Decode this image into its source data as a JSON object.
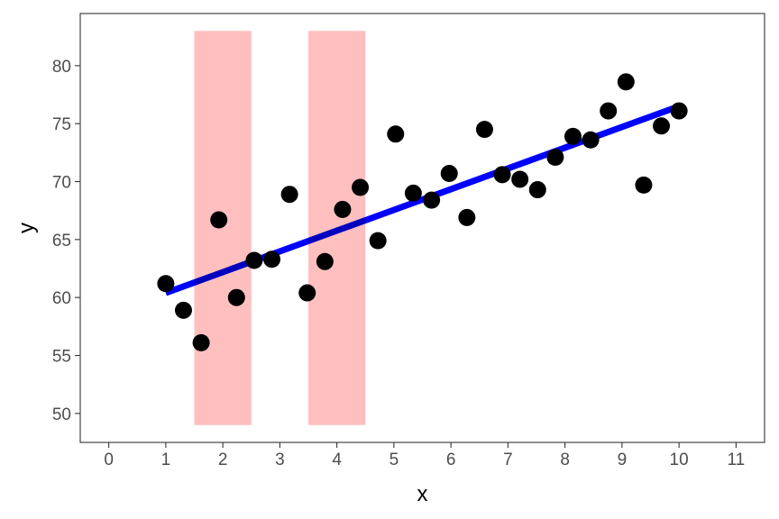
{
  "chart_data": {
    "type": "scatter",
    "title": "",
    "xlabel": "x",
    "ylabel": "y",
    "xlim": [
      -0.5,
      11.5
    ],
    "ylim": [
      47.5,
      84.5
    ],
    "x_ticks": [
      0,
      1,
      2,
      3,
      4,
      5,
      6,
      7,
      8,
      9,
      10,
      11
    ],
    "y_ticks": [
      50,
      55,
      60,
      65,
      70,
      75,
      80
    ],
    "grid": false,
    "points": {
      "x": [
        1.0,
        1.31,
        1.62,
        1.93,
        2.24,
        2.55,
        2.86,
        3.17,
        3.48,
        3.79,
        4.1,
        4.41,
        4.72,
        5.03,
        5.34,
        5.66,
        5.97,
        6.28,
        6.59,
        6.9,
        7.21,
        7.52,
        7.83,
        8.14,
        8.45,
        8.76,
        9.07,
        9.38,
        9.69,
        10.0
      ],
      "y": [
        61.2,
        58.9,
        56.1,
        66.7,
        60.0,
        63.2,
        63.3,
        68.9,
        60.4,
        63.1,
        67.6,
        69.5,
        64.9,
        74.1,
        69.0,
        68.4,
        70.7,
        66.9,
        74.5,
        70.6,
        70.2,
        69.3,
        72.1,
        73.9,
        73.6,
        76.1,
        78.6,
        69.7,
        74.8,
        76.1
      ],
      "color": "#000000"
    },
    "fit_line": {
      "x": [
        1.0,
        10.0
      ],
      "y": [
        60.4,
        76.5
      ],
      "color": "#0000ff"
    },
    "shaded_regions": [
      {
        "x": [
          1.5,
          2.5
        ],
        "y": [
          49.0,
          83.0
        ],
        "color": "#ffbfbf"
      },
      {
        "x": [
          3.5,
          4.5
        ],
        "y": [
          49.0,
          83.0
        ],
        "color": "#ffbfbf"
      }
    ]
  }
}
